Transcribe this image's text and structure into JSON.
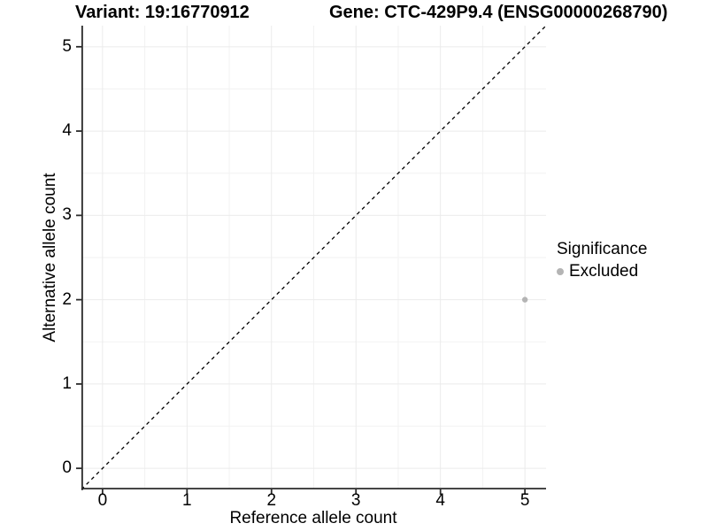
{
  "chart_data": {
    "type": "scatter",
    "title_left": "Variant: 19:16770912",
    "title_right": "Gene: CTC-429P9.4 (ENSG00000268790)",
    "xlabel": "Reference allele count",
    "ylabel": "Alternative allele count",
    "xlim": [
      -0.25,
      5.25
    ],
    "ylim": [
      -0.25,
      5.25
    ],
    "x_ticks": [
      0,
      1,
      2,
      3,
      4,
      5
    ],
    "y_ticks": [
      0,
      1,
      2,
      3,
      4,
      5
    ],
    "x_minor_ticks": [
      0.5,
      1.5,
      2.5,
      3.5,
      4.5
    ],
    "y_minor_ticks": [
      0.5,
      1.5,
      2.5,
      3.5,
      4.5
    ],
    "grid": "on",
    "series": [
      {
        "name": "Excluded",
        "marker": "circle",
        "color": "#b4b4b4",
        "points": [
          {
            "x": 5,
            "y": 2
          }
        ]
      }
    ],
    "reference_line": {
      "slope": 1,
      "intercept": 0,
      "style": "dashed",
      "color": "#000000"
    },
    "legend": {
      "title": "Significance",
      "position": "right",
      "entries": [
        {
          "label": "Excluded",
          "color": "#b4b4b4",
          "marker": "circle"
        }
      ]
    },
    "style": {
      "background": "#ffffff",
      "axis_line_color": "#2b2b2b",
      "tick_color": "#2b2b2b",
      "grid_major_color": "#ebebeb",
      "grid_minor_color": "#f2f2f2",
      "text_color": "#000000"
    }
  }
}
